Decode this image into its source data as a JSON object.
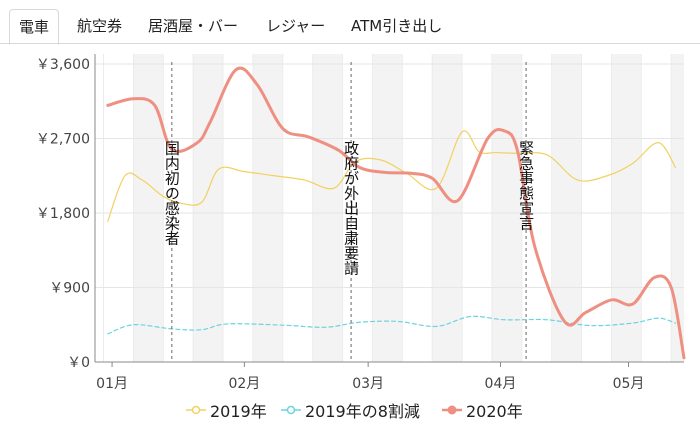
{
  "tabs": [
    {
      "label": "電車",
      "active": true
    },
    {
      "label": "航空券",
      "active": false
    },
    {
      "label": "居酒屋・バー",
      "active": false
    },
    {
      "label": "レジャー",
      "active": false
    },
    {
      "label": "ATM引き出し",
      "active": false
    }
  ],
  "colors": {
    "series_2019": "#f2d15f",
    "series_2019_80": "#6dd3dc",
    "series_2020": "#ef8f82",
    "grid": "#eeeeee",
    "band": "#f3f3f3"
  },
  "chart_data": {
    "type": "line",
    "ylabels": [
      "￥3,600",
      "￥2,700",
      "￥1,800",
      "￥900",
      "￥0"
    ],
    "ylim": [
      0,
      3600
    ],
    "xlabels": [
      "01月",
      "02月",
      "03月",
      "04月",
      "05月"
    ],
    "x_range": [
      "2019-12-28",
      "2020-05-14"
    ],
    "annotations": [
      {
        "date": "2020-01-15",
        "text": "国内初の感染者"
      },
      {
        "date": "2020-02-26",
        "text": "政府が外出自粛要請"
      },
      {
        "date": "2020-04-07",
        "text": "緊急事態宣言"
      }
    ],
    "series": [
      {
        "name": "2019年",
        "dates": [
          "2019-12-31",
          "2020-01-04",
          "2020-01-08",
          "2020-01-13",
          "2020-01-17",
          "2020-01-22",
          "2020-01-26",
          "2020-02-01",
          "2020-02-08",
          "2020-02-15",
          "2020-02-22",
          "2020-02-27",
          "2020-03-04",
          "2020-03-10",
          "2020-03-17",
          "2020-03-23",
          "2020-03-27",
          "2020-03-31",
          "2020-04-05",
          "2020-04-12",
          "2020-04-19",
          "2020-04-26",
          "2020-05-02",
          "2020-05-08",
          "2020-05-12"
        ],
        "values": [
          1700,
          2250,
          2200,
          2000,
          1920,
          1930,
          2330,
          2300,
          2250,
          2200,
          2100,
          2420,
          2440,
          2280,
          2100,
          2780,
          2540,
          2530,
          2520,
          2500,
          2200,
          2250,
          2400,
          2650,
          2350
        ]
      },
      {
        "name": "2019年の8割減",
        "dates": [
          "2019-12-31",
          "2020-01-06",
          "2020-01-15",
          "2020-01-22",
          "2020-01-28",
          "2020-02-10",
          "2020-02-20",
          "2020-02-28",
          "2020-03-08",
          "2020-03-17",
          "2020-03-25",
          "2020-04-02",
          "2020-04-12",
          "2020-04-22",
          "2020-05-02",
          "2020-05-08",
          "2020-05-12"
        ],
        "values": [
          340,
          450,
          400,
          390,
          460,
          445,
          420,
          480,
          490,
          430,
          550,
          510,
          510,
          440,
          470,
          530,
          470
        ]
      },
      {
        "name": "2020年",
        "dates": [
          "2019-12-31",
          "2020-01-06",
          "2020-01-11",
          "2020-01-15",
          "2020-01-21",
          "2020-01-24",
          "2020-01-30",
          "2020-02-04",
          "2020-02-10",
          "2020-02-16",
          "2020-02-23",
          "2020-02-28",
          "2020-03-05",
          "2020-03-11",
          "2020-03-16",
          "2020-03-22",
          "2020-03-29",
          "2020-04-02",
          "2020-04-05",
          "2020-04-09",
          "2020-04-16",
          "2020-04-21",
          "2020-04-27",
          "2020-05-02",
          "2020-05-07",
          "2020-05-11",
          "2020-05-14"
        ],
        "values": [
          3100,
          3180,
          3100,
          2570,
          2650,
          2900,
          3530,
          3350,
          2820,
          2720,
          2560,
          2350,
          2290,
          2280,
          2220,
          1950,
          2700,
          2790,
          2550,
          1400,
          490,
          600,
          750,
          700,
          1020,
          900,
          50
        ]
      }
    ],
    "legend": "bottom"
  }
}
